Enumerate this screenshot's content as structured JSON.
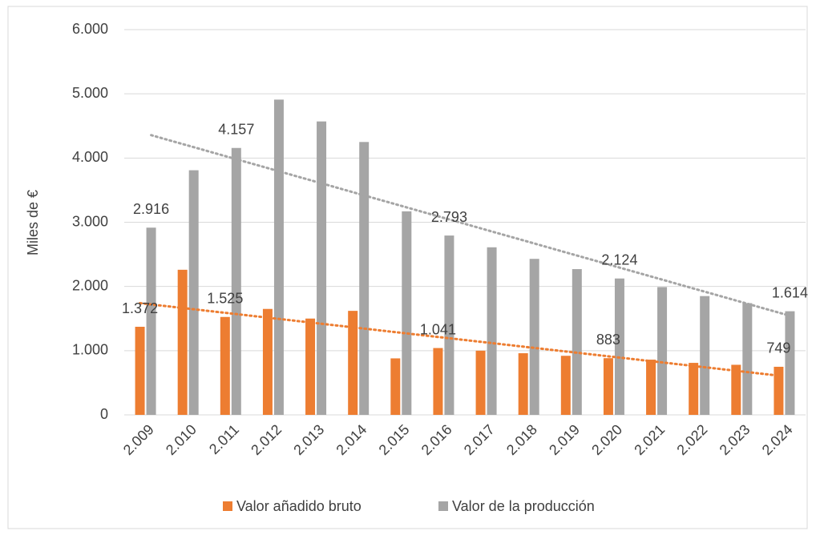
{
  "chart_data": {
    "type": "bar",
    "ylabel": "Miles de €",
    "categories": [
      "2.009",
      "2.010",
      "2.011",
      "2.012",
      "2.013",
      "2.014",
      "2.015",
      "2.016",
      "2.017",
      "2.018",
      "2.019",
      "2.020",
      "2.021",
      "2.022",
      "2.023",
      "2.024"
    ],
    "series": [
      {
        "name": "Valor añadido bruto",
        "color": "#ed7d31",
        "values": [
          1372,
          2260,
          1525,
          1650,
          1500,
          1620,
          880,
          1041,
          1000,
          960,
          920,
          883,
          860,
          810,
          780,
          749
        ],
        "value_labels": [
          "1.372",
          null,
          "1.525",
          null,
          null,
          null,
          null,
          "1.041",
          null,
          null,
          null,
          "883",
          null,
          null,
          null,
          "749"
        ]
      },
      {
        "name": "Valor de la producción",
        "color": "#a5a5a5",
        "values": [
          2916,
          3810,
          4157,
          4910,
          4570,
          4250,
          3170,
          2793,
          2610,
          2430,
          2270,
          2124,
          1990,
          1850,
          1740,
          1614
        ],
        "value_labels": [
          "2.916",
          null,
          "4.157",
          null,
          null,
          null,
          null,
          "2.793",
          null,
          null,
          null,
          "2.124",
          null,
          null,
          null,
          "1.614"
        ]
      }
    ],
    "ylim": [
      0,
      6000
    ],
    "yticks": [
      0,
      {
        "value": 1000,
        "label": "1.000"
      },
      {
        "value": 2000,
        "label": "2.000"
      },
      {
        "value": 3000,
        "label": "3.000"
      },
      {
        "value": 4000,
        "label": "4.000"
      },
      {
        "value": 5000,
        "label": "5.000"
      },
      {
        "value": 6000,
        "label": "6.000"
      }
    ],
    "grid": true,
    "trendline": true,
    "legend": "bottom"
  }
}
